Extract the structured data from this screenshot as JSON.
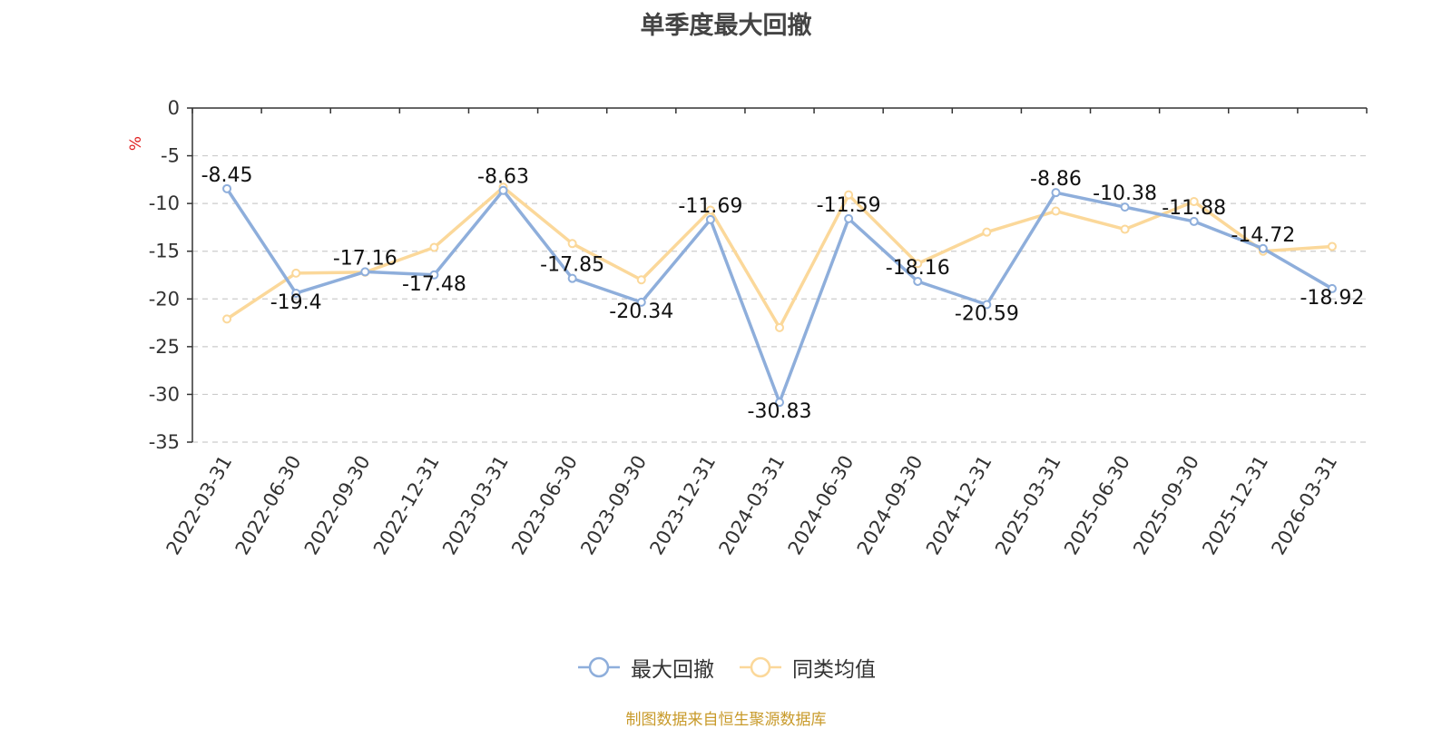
{
  "chart_data": {
    "type": "line",
    "title": "单季度最大回撤",
    "ylabel": "%",
    "xlabel": "",
    "ylim": [
      -35,
      0
    ],
    "yticks": [
      "0",
      "-5",
      "-10",
      "-15",
      "-20",
      "-25",
      "-30",
      "-35"
    ],
    "categories": [
      "2022-03-31",
      "2022-06-30",
      "2022-09-30",
      "2022-12-31",
      "2023-03-31",
      "2023-06-30",
      "2023-09-30",
      "2023-12-31",
      "2024-03-31",
      "2024-06-30",
      "2024-09-30",
      "2024-12-31",
      "2025-03-31",
      "2025-06-30",
      "2025-09-30",
      "2025-12-31",
      "2026-03-31"
    ],
    "series": [
      {
        "name": "最大回撤",
        "color": "#8eaedb",
        "values": [
          -8.45,
          -19.4,
          -17.16,
          -17.48,
          -8.63,
          -17.85,
          -20.34,
          -11.69,
          -30.83,
          -11.59,
          -18.16,
          -20.59,
          -8.86,
          -10.38,
          -11.88,
          -14.72,
          -18.92
        ],
        "labels": [
          "-8.45",
          "-19.4",
          "-17.16",
          "-17.48",
          "-8.63",
          "-17.85",
          "-20.34",
          "-11.69",
          "-30.83",
          "-11.59",
          "-18.16",
          "-20.59",
          "-8.86",
          "-10.38",
          "-11.88",
          "-14.72",
          "-18.92"
        ]
      },
      {
        "name": "同类均值",
        "color": "#fbd89a",
        "values": [
          -22.1,
          -17.3,
          -17.2,
          -14.6,
          -8.3,
          -14.2,
          -18.0,
          -10.7,
          -23.0,
          -9.1,
          -16.3,
          -13.0,
          -10.8,
          -12.7,
          -9.8,
          -15.0,
          -14.5
        ]
      }
    ],
    "grid": true,
    "legend_position": "bottom"
  },
  "source_note": "制图数据来自恒生聚源数据库"
}
